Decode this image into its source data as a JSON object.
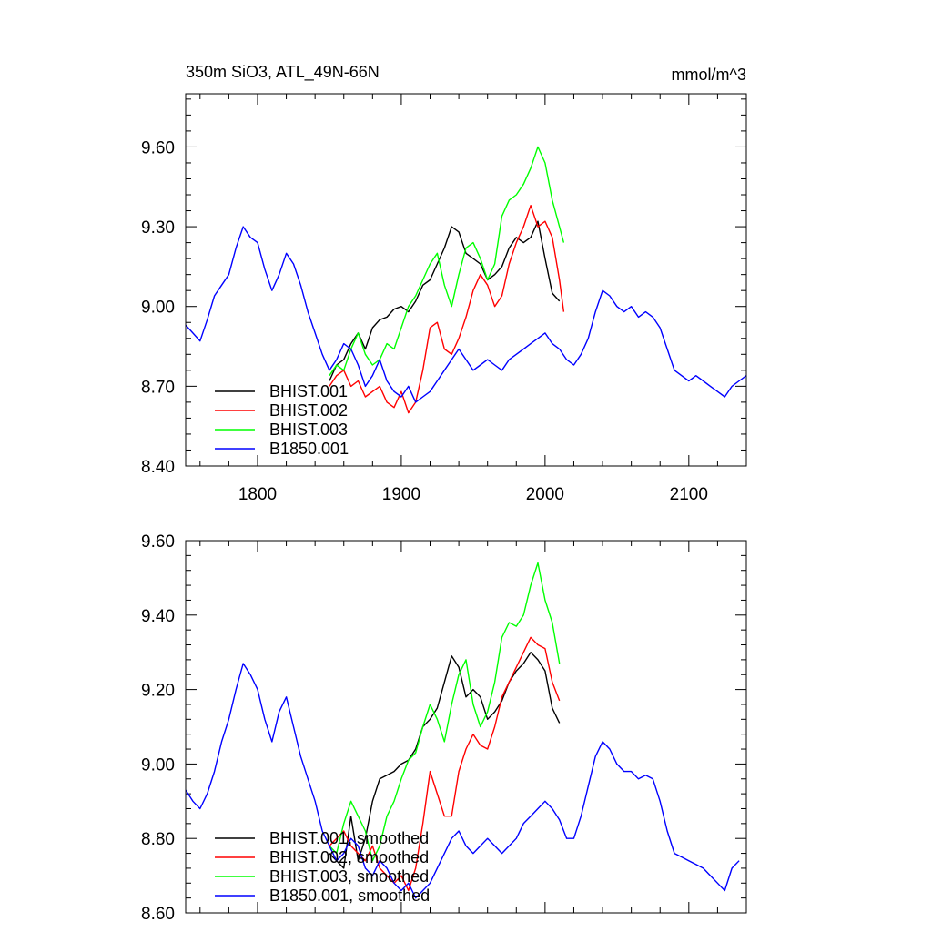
{
  "chart_data": [
    {
      "type": "line",
      "title": "350m SiO3, ATL_49N-66N",
      "units": "mmol/m^3",
      "xlim": [
        1750,
        2140
      ],
      "ylim": [
        8.4,
        9.8
      ],
      "xticks": [
        1800,
        1900,
        2000,
        2100
      ],
      "xtick_labels": [
        "1800",
        "1900",
        "2000",
        "2100"
      ],
      "yticks": [
        8.4,
        8.7,
        9.0,
        9.3,
        9.6
      ],
      "ytick_labels": [
        "8.40",
        "8.70",
        "9.00",
        "9.30",
        "9.60"
      ],
      "legend_position": "bottom-left",
      "series": [
        {
          "name": "BHIST.001",
          "color": "#000000",
          "x": [
            1850,
            1855,
            1860,
            1865,
            1870,
            1875,
            1880,
            1885,
            1890,
            1895,
            1900,
            1905,
            1910,
            1915,
            1920,
            1925,
            1930,
            1935,
            1940,
            1945,
            1950,
            1955,
            1960,
            1965,
            1970,
            1975,
            1980,
            1985,
            1990,
            1995,
            2000,
            2005,
            2010
          ],
          "y": [
            8.72,
            8.78,
            8.8,
            8.86,
            8.9,
            8.84,
            8.92,
            8.95,
            8.96,
            8.99,
            9.0,
            8.98,
            9.02,
            9.08,
            9.1,
            9.16,
            9.22,
            9.3,
            9.28,
            9.2,
            9.18,
            9.16,
            9.1,
            9.12,
            9.15,
            9.22,
            9.26,
            9.24,
            9.26,
            9.32,
            9.18,
            9.05,
            9.02
          ]
        },
        {
          "name": "BHIST.002",
          "color": "#ff0000",
          "x": [
            1850,
            1855,
            1860,
            1865,
            1870,
            1875,
            1880,
            1885,
            1890,
            1895,
            1900,
            1905,
            1910,
            1915,
            1920,
            1925,
            1930,
            1935,
            1940,
            1945,
            1950,
            1955,
            1960,
            1965,
            1970,
            1975,
            1980,
            1985,
            1990,
            1995,
            2000,
            2005,
            2010,
            2013
          ],
          "y": [
            8.7,
            8.74,
            8.76,
            8.7,
            8.72,
            8.66,
            8.68,
            8.7,
            8.64,
            8.62,
            8.68,
            8.6,
            8.64,
            8.76,
            8.92,
            8.94,
            8.84,
            8.82,
            8.88,
            8.96,
            9.06,
            9.12,
            9.08,
            9.0,
            9.04,
            9.16,
            9.24,
            9.3,
            9.38,
            9.3,
            9.32,
            9.26,
            9.1,
            8.98
          ]
        },
        {
          "name": "BHIST.003",
          "color": "#00ff00",
          "x": [
            1850,
            1855,
            1860,
            1865,
            1870,
            1875,
            1880,
            1885,
            1890,
            1895,
            1900,
            1905,
            1910,
            1915,
            1920,
            1925,
            1930,
            1935,
            1940,
            1945,
            1950,
            1955,
            1960,
            1965,
            1970,
            1975,
            1980,
            1985,
            1990,
            1995,
            2000,
            2005,
            2010,
            2013
          ],
          "y": [
            8.74,
            8.78,
            8.76,
            8.84,
            8.9,
            8.82,
            8.78,
            8.8,
            8.86,
            8.84,
            8.92,
            9.0,
            9.04,
            9.1,
            9.16,
            9.2,
            9.08,
            9.0,
            9.12,
            9.22,
            9.24,
            9.18,
            9.1,
            9.16,
            9.34,
            9.4,
            9.42,
            9.46,
            9.52,
            9.6,
            9.54,
            9.4,
            9.3,
            9.24
          ]
        },
        {
          "name": "B1850.001",
          "color": "#0000ff",
          "x": [
            1750,
            1755,
            1760,
            1765,
            1770,
            1775,
            1780,
            1785,
            1790,
            1795,
            1800,
            1805,
            1810,
            1815,
            1820,
            1825,
            1830,
            1835,
            1840,
            1845,
            1850,
            1855,
            1860,
            1865,
            1870,
            1875,
            1880,
            1885,
            1890,
            1895,
            1900,
            1905,
            1910,
            1915,
            1920,
            1925,
            1930,
            1935,
            1940,
            1945,
            1950,
            1955,
            1960,
            1965,
            1970,
            1975,
            1980,
            1985,
            1990,
            1995,
            2000,
            2005,
            2010,
            2015,
            2020,
            2025,
            2030,
            2035,
            2040,
            2045,
            2050,
            2055,
            2060,
            2065,
            2070,
            2075,
            2080,
            2085,
            2090,
            2095,
            2100,
            2105,
            2110,
            2115,
            2120,
            2125,
            2130,
            2135,
            2140
          ],
          "y": [
            8.93,
            8.9,
            8.87,
            8.95,
            9.04,
            9.08,
            9.12,
            9.22,
            9.3,
            9.26,
            9.24,
            9.14,
            9.06,
            9.12,
            9.2,
            9.16,
            9.08,
            8.98,
            8.9,
            8.82,
            8.76,
            8.8,
            8.86,
            8.84,
            8.78,
            8.7,
            8.74,
            8.8,
            8.72,
            8.68,
            8.66,
            8.7,
            8.64,
            8.66,
            8.68,
            8.72,
            8.76,
            8.8,
            8.84,
            8.8,
            8.76,
            8.78,
            8.8,
            8.78,
            8.76,
            8.8,
            8.82,
            8.84,
            8.86,
            8.88,
            8.9,
            8.86,
            8.84,
            8.8,
            8.78,
            8.82,
            8.88,
            8.98,
            9.06,
            9.04,
            9.0,
            8.98,
            9.0,
            8.96,
            8.98,
            8.96,
            8.92,
            8.84,
            8.76,
            8.74,
            8.72,
            8.74,
            8.72,
            8.7,
            8.68,
            8.66,
            8.7,
            8.72,
            8.74
          ]
        }
      ]
    },
    {
      "type": "line",
      "title": "",
      "units": "",
      "xlim": [
        1750,
        2140
      ],
      "ylim": [
        8.6,
        9.6
      ],
      "xticks": [
        1800,
        1900,
        2000,
        2100
      ],
      "xtick_labels": [],
      "yticks": [
        8.6,
        8.8,
        9.0,
        9.2,
        9.4,
        9.6
      ],
      "ytick_labels": [
        "8.60",
        "8.80",
        "9.00",
        "9.20",
        "9.40",
        "9.60"
      ],
      "legend_position": "bottom-left",
      "series": [
        {
          "name": "BHIST.001, smoothed",
          "color": "#000000",
          "x": [
            1850,
            1855,
            1860,
            1865,
            1870,
            1875,
            1880,
            1885,
            1890,
            1895,
            1900,
            1905,
            1910,
            1915,
            1920,
            1925,
            1930,
            1935,
            1940,
            1945,
            1950,
            1955,
            1960,
            1965,
            1970,
            1975,
            1980,
            1985,
            1990,
            1995,
            2000,
            2005,
            2010
          ],
          "y": [
            8.76,
            8.74,
            8.72,
            8.86,
            8.74,
            8.8,
            8.9,
            8.96,
            8.97,
            8.98,
            9.0,
            9.01,
            9.04,
            9.1,
            9.12,
            9.15,
            9.22,
            9.29,
            9.26,
            9.18,
            9.2,
            9.18,
            9.12,
            9.14,
            9.17,
            9.22,
            9.25,
            9.27,
            9.3,
            9.28,
            9.25,
            9.15,
            9.11
          ]
        },
        {
          "name": "BHIST.002, smoothed",
          "color": "#ff0000",
          "x": [
            1850,
            1855,
            1860,
            1865,
            1870,
            1875,
            1880,
            1885,
            1890,
            1895,
            1900,
            1905,
            1910,
            1915,
            1920,
            1925,
            1930,
            1935,
            1940,
            1945,
            1950,
            1955,
            1960,
            1965,
            1970,
            1975,
            1980,
            1985,
            1990,
            1995,
            2000,
            2005,
            2010
          ],
          "y": [
            8.78,
            8.8,
            8.82,
            8.78,
            8.76,
            8.74,
            8.78,
            8.72,
            8.7,
            8.68,
            8.7,
            8.66,
            8.72,
            8.84,
            8.98,
            8.92,
            8.86,
            8.86,
            8.98,
            9.04,
            9.08,
            9.05,
            9.04,
            9.1,
            9.18,
            9.22,
            9.26,
            9.3,
            9.34,
            9.32,
            9.31,
            9.22,
            9.17
          ]
        },
        {
          "name": "BHIST.003, smoothed",
          "color": "#00ff00",
          "x": [
            1850,
            1855,
            1860,
            1865,
            1870,
            1875,
            1880,
            1885,
            1890,
            1895,
            1900,
            1905,
            1910,
            1915,
            1920,
            1925,
            1930,
            1935,
            1940,
            1945,
            1950,
            1955,
            1960,
            1965,
            1970,
            1975,
            1980,
            1985,
            1990,
            1995,
            2000,
            2005,
            2010
          ],
          "y": [
            8.78,
            8.76,
            8.84,
            8.9,
            8.86,
            8.82,
            8.74,
            8.78,
            8.86,
            8.9,
            8.96,
            9.01,
            9.03,
            9.1,
            9.16,
            9.12,
            9.06,
            9.16,
            9.24,
            9.28,
            9.16,
            9.1,
            9.14,
            9.22,
            9.34,
            9.38,
            9.37,
            9.4,
            9.48,
            9.54,
            9.44,
            9.38,
            9.27
          ]
        },
        {
          "name": "B1850.001, smoothed",
          "color": "#0000ff",
          "x": [
            1750,
            1755,
            1760,
            1765,
            1770,
            1775,
            1780,
            1785,
            1790,
            1795,
            1800,
            1805,
            1810,
            1815,
            1820,
            1825,
            1830,
            1835,
            1840,
            1845,
            1850,
            1855,
            1860,
            1865,
            1870,
            1875,
            1880,
            1885,
            1890,
            1895,
            1900,
            1905,
            1910,
            1915,
            1920,
            1925,
            1930,
            1935,
            1940,
            1945,
            1950,
            1955,
            1960,
            1965,
            1970,
            1975,
            1980,
            1985,
            1990,
            1995,
            2000,
            2005,
            2010,
            2015,
            2020,
            2025,
            2030,
            2035,
            2040,
            2045,
            2050,
            2055,
            2060,
            2065,
            2070,
            2075,
            2080,
            2085,
            2090,
            2095,
            2100,
            2105,
            2110,
            2115,
            2120,
            2125,
            2130,
            2135
          ],
          "y": [
            8.93,
            8.9,
            8.88,
            8.92,
            8.98,
            9.06,
            9.12,
            9.2,
            9.27,
            9.24,
            9.2,
            9.12,
            9.06,
            9.14,
            9.18,
            9.1,
            9.02,
            8.96,
            8.9,
            8.82,
            8.78,
            8.74,
            8.76,
            8.8,
            8.78,
            8.72,
            8.7,
            8.74,
            8.72,
            8.68,
            8.66,
            8.68,
            8.64,
            8.66,
            8.68,
            8.72,
            8.76,
            8.8,
            8.82,
            8.78,
            8.76,
            8.78,
            8.8,
            8.78,
            8.76,
            8.78,
            8.8,
            8.84,
            8.86,
            8.88,
            8.9,
            8.88,
            8.85,
            8.8,
            8.8,
            8.86,
            8.94,
            9.02,
            9.06,
            9.04,
            9.0,
            8.98,
            8.98,
            8.96,
            8.97,
            8.96,
            8.9,
            8.82,
            8.76,
            8.75,
            8.74,
            8.73,
            8.72,
            8.7,
            8.68,
            8.66,
            8.72,
            8.74
          ]
        }
      ]
    }
  ]
}
